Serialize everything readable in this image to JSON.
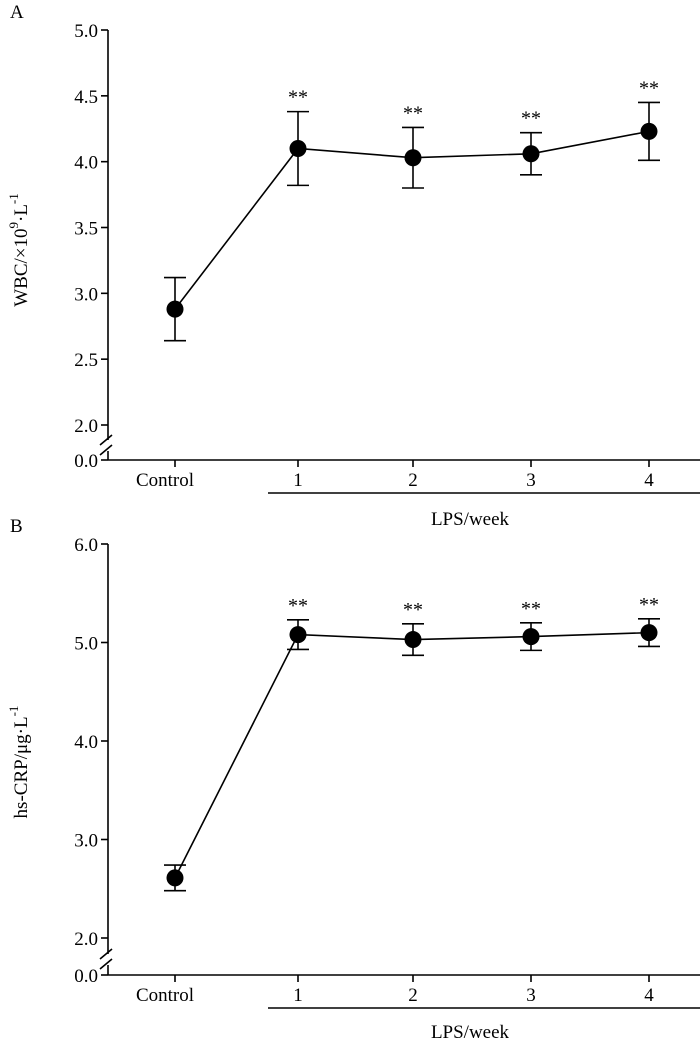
{
  "chart_data": [
    {
      "type": "line",
      "panel_label": "A",
      "ylabel": "WBC/×10⁹·L⁻¹",
      "ylabel_parts": {
        "main": "WBC/×10",
        "exp": "9",
        "mid": "·L",
        "exp2": "-1"
      },
      "categories": [
        "Control",
        "1",
        "2",
        "3",
        "4"
      ],
      "group_label": "LPS/week",
      "ylim": [
        2.0,
        5.0
      ],
      "axis_break_zero_label": "0.0",
      "yticks": [
        "2.0",
        "2.5",
        "3.0",
        "3.5",
        "4.0",
        "4.5",
        "5.0"
      ],
      "series": [
        {
          "name": "WBC",
          "values": [
            2.88,
            4.1,
            4.03,
            4.06,
            4.23
          ],
          "errors": [
            0.24,
            0.28,
            0.23,
            0.16,
            0.22
          ],
          "significance": [
            "",
            "**",
            "**",
            "**",
            "**"
          ]
        }
      ]
    },
    {
      "type": "line",
      "panel_label": "B",
      "ylabel": "hs-CRP/μg·L⁻¹",
      "ylabel_parts": {
        "main": "hs-CRP/μg·L",
        "exp": "-1"
      },
      "categories": [
        "Control",
        "1",
        "2",
        "3",
        "4"
      ],
      "group_label": "LPS/week",
      "ylim": [
        2.0,
        6.0
      ],
      "axis_break_zero_label": "0.0",
      "yticks": [
        "2.0",
        "3.0",
        "4.0",
        "5.0",
        "6.0"
      ],
      "series": [
        {
          "name": "hs-CRP",
          "values": [
            2.61,
            5.08,
            5.03,
            5.06,
            5.1
          ],
          "errors": [
            0.13,
            0.15,
            0.16,
            0.14,
            0.14
          ],
          "significance": [
            "",
            "**",
            "**",
            "**",
            "**"
          ]
        }
      ]
    }
  ]
}
